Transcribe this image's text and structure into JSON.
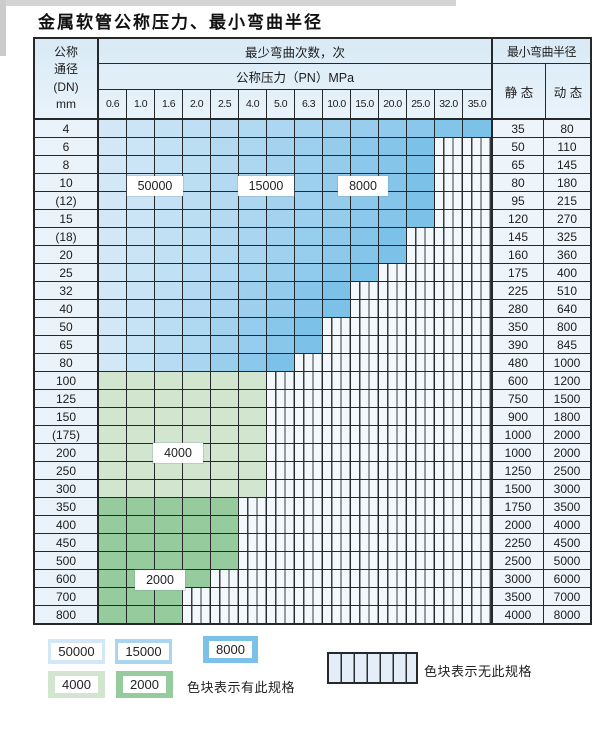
{
  "title": "金属软管公称压力、最小弯曲半径",
  "table": {
    "corner_lines": [
      "公称",
      "通径",
      "(DN)",
      "mm"
    ],
    "bend_cycles_header": "最少弯曲次数，次",
    "pressure_header": "公称压力（PN）MPa",
    "radius_header": "最小弯曲半径",
    "static_label": "静 态",
    "dynamic_label": "动 态",
    "pressure_columns": [
      "0.6",
      "1.0",
      "1.6",
      "2.0",
      "2.5",
      "4.0",
      "5.0",
      "6.3",
      "10.0",
      "15.0",
      "20.0",
      "25.0",
      "32.0",
      "35.0"
    ],
    "rows": [
      {
        "dn": "4",
        "spec_columns": 14,
        "scheme": "blue",
        "static": "35",
        "dynamic": "80"
      },
      {
        "dn": "6",
        "spec_columns": 12,
        "scheme": "blue",
        "static": "50",
        "dynamic": "110"
      },
      {
        "dn": "8",
        "spec_columns": 12,
        "scheme": "blue",
        "static": "65",
        "dynamic": "145"
      },
      {
        "dn": "10",
        "spec_columns": 12,
        "scheme": "blue",
        "static": "80",
        "dynamic": "180"
      },
      {
        "dn": "(12)",
        "spec_columns": 12,
        "scheme": "blue",
        "static": "95",
        "dynamic": "215"
      },
      {
        "dn": "15",
        "spec_columns": 12,
        "scheme": "blue",
        "static": "120",
        "dynamic": "270"
      },
      {
        "dn": "(18)",
        "spec_columns": 11,
        "scheme": "blue",
        "static": "145",
        "dynamic": "325"
      },
      {
        "dn": "20",
        "spec_columns": 11,
        "scheme": "blue",
        "static": "160",
        "dynamic": "360"
      },
      {
        "dn": "25",
        "spec_columns": 10,
        "scheme": "blue",
        "static": "175",
        "dynamic": "400"
      },
      {
        "dn": "32",
        "spec_columns": 9,
        "scheme": "blue",
        "static": "225",
        "dynamic": "510"
      },
      {
        "dn": "40",
        "spec_columns": 9,
        "scheme": "blue",
        "static": "280",
        "dynamic": "640"
      },
      {
        "dn": "50",
        "spec_columns": 8,
        "scheme": "blue",
        "static": "350",
        "dynamic": "800"
      },
      {
        "dn": "65",
        "spec_columns": 8,
        "scheme": "blue",
        "static": "390",
        "dynamic": "845"
      },
      {
        "dn": "80",
        "spec_columns": 7,
        "scheme": "blue",
        "static": "480",
        "dynamic": "1000"
      },
      {
        "dn": "100",
        "spec_columns": 6,
        "scheme": "c4000",
        "static": "600",
        "dynamic": "1200"
      },
      {
        "dn": "125",
        "spec_columns": 6,
        "scheme": "c4000",
        "static": "750",
        "dynamic": "1500"
      },
      {
        "dn": "150",
        "spec_columns": 6,
        "scheme": "c4000",
        "static": "900",
        "dynamic": "1800"
      },
      {
        "dn": "(175)",
        "spec_columns": 6,
        "scheme": "c4000",
        "static": "1000",
        "dynamic": "2000"
      },
      {
        "dn": "200",
        "spec_columns": 6,
        "scheme": "c4000",
        "static": "1000",
        "dynamic": "2000"
      },
      {
        "dn": "250",
        "spec_columns": 6,
        "scheme": "c4000",
        "static": "1250",
        "dynamic": "2500"
      },
      {
        "dn": "300",
        "spec_columns": 6,
        "scheme": "c4000",
        "static": "1500",
        "dynamic": "3000"
      },
      {
        "dn": "350",
        "spec_columns": 5,
        "scheme": "c2000",
        "static": "1750",
        "dynamic": "3500"
      },
      {
        "dn": "400",
        "spec_columns": 5,
        "scheme": "c2000",
        "static": "2000",
        "dynamic": "4000"
      },
      {
        "dn": "450",
        "spec_columns": 5,
        "scheme": "c2000",
        "static": "2250",
        "dynamic": "4500"
      },
      {
        "dn": "500",
        "spec_columns": 5,
        "scheme": "c2000",
        "static": "2500",
        "dynamic": "5000"
      },
      {
        "dn": "600",
        "spec_columns": 4,
        "scheme": "c2000",
        "static": "3000",
        "dynamic": "6000"
      },
      {
        "dn": "700",
        "spec_columns": 3,
        "scheme": "c2000",
        "static": "3500",
        "dynamic": "7000"
      },
      {
        "dn": "800",
        "spec_columns": 3,
        "scheme": "c2000",
        "static": "4000",
        "dynamic": "8000"
      }
    ]
  },
  "colors": {
    "c50000": "#d2e8f7",
    "c15000": "#a9d5f0",
    "c8000": "#7cc1e8",
    "c4000": "#d1e5cf",
    "c2000": "#96cb9d"
  },
  "legend": {
    "items": [
      {
        "label": "50000",
        "color": "c50000"
      },
      {
        "label": "15000",
        "color": "c15000"
      },
      {
        "label": "8000",
        "color": "c8000"
      },
      {
        "label": "4000",
        "color": "c4000"
      },
      {
        "label": "2000",
        "color": "c2000"
      }
    ],
    "has_spec_text": "色块表示有此规格",
    "no_spec_text": "色块表示无此规格"
  }
}
